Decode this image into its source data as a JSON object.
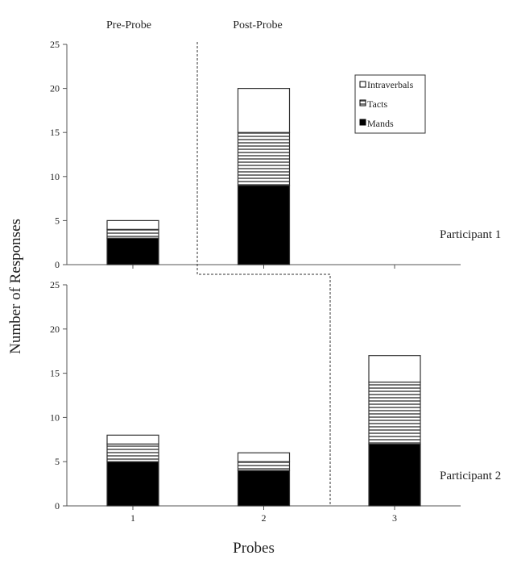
{
  "chart_data": [
    {
      "type": "bar",
      "stacked": true,
      "panel_label": "Participant 1",
      "phase_labels": [
        "Pre-Probe",
        "Post-Probe"
      ],
      "categories": [
        "1",
        "2",
        "3"
      ],
      "ylim": [
        0,
        25
      ],
      "yticks": [
        0,
        5,
        10,
        15,
        20,
        25
      ],
      "series": [
        {
          "name": "Mands",
          "values": [
            3,
            9,
            0
          ]
        },
        {
          "name": "Tacts",
          "values": [
            1,
            6,
            0
          ]
        },
        {
          "name": "Intraverbals",
          "values": [
            1,
            5,
            0
          ]
        }
      ],
      "legend": {
        "placement": "top-right",
        "entries": [
          "Intraverbals",
          "Tacts",
          "Mands"
        ]
      }
    },
    {
      "type": "bar",
      "stacked": true,
      "panel_label": "Participant 2",
      "categories": [
        "1",
        "2",
        "3"
      ],
      "ylim": [
        0,
        25
      ],
      "yticks": [
        0,
        5,
        10,
        15,
        20,
        25
      ],
      "series": [
        {
          "name": "Mands",
          "values": [
            5,
            4,
            7
          ]
        },
        {
          "name": "Tacts",
          "values": [
            2,
            1,
            7
          ]
        },
        {
          "name": "Intraverbals",
          "values": [
            1,
            1,
            3
          ]
        }
      ]
    }
  ],
  "xlabel": "Probes",
  "ylabel": "Number of Responses",
  "colors": {
    "Mands": "#000000",
    "Tacts": "striped",
    "Intraverbals": "#ffffff"
  }
}
